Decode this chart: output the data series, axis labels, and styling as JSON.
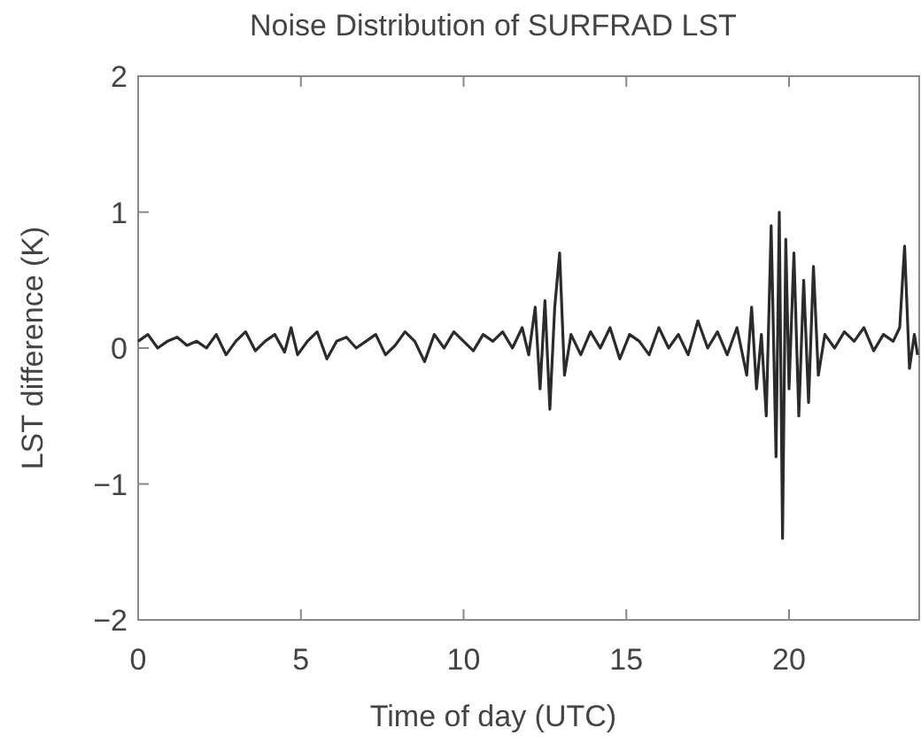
{
  "chart_data": {
    "type": "line",
    "title": "Noise Distribution of SURFRAD LST",
    "xlabel": "Time of day (UTC)",
    "ylabel": "LST difference (K)",
    "xlim": [
      0,
      24
    ],
    "ylim": [
      -2,
      2
    ],
    "xticks": [
      0,
      5,
      10,
      15,
      20
    ],
    "yticks": [
      {
        "value": -2,
        "label": "−2"
      },
      {
        "value": -1,
        "label": "−1"
      },
      0,
      1,
      2
    ],
    "grid": false,
    "line_style": "solid",
    "series": [
      {
        "color": "#2b2b2b",
        "x": [
          0,
          0.3,
          0.6,
          0.9,
          1.2,
          1.5,
          1.8,
          2.1,
          2.4,
          2.7,
          3.0,
          3.3,
          3.6,
          3.9,
          4.2,
          4.5,
          4.7,
          4.9,
          5.2,
          5.5,
          5.8,
          6.1,
          6.4,
          6.7,
          7.0,
          7.3,
          7.6,
          7.9,
          8.2,
          8.5,
          8.8,
          9.1,
          9.4,
          9.7,
          10.0,
          10.3,
          10.6,
          10.9,
          11.2,
          11.5,
          11.8,
          12.0,
          12.2,
          12.35,
          12.5,
          12.65,
          12.8,
          12.95,
          13.1,
          13.3,
          13.6,
          13.9,
          14.2,
          14.5,
          14.8,
          15.1,
          15.4,
          15.7,
          16.0,
          16.3,
          16.6,
          16.9,
          17.2,
          17.5,
          17.8,
          18.1,
          18.4,
          18.7,
          18.85,
          19.0,
          19.15,
          19.3,
          19.45,
          19.6,
          19.7,
          19.8,
          19.9,
          20.0,
          20.15,
          20.3,
          20.45,
          20.6,
          20.75,
          20.9,
          21.1,
          21.4,
          21.7,
          22.0,
          22.3,
          22.6,
          22.9,
          23.2,
          23.4,
          23.55,
          23.7,
          23.85,
          23.95
        ],
        "values": [
          0.05,
          0.1,
          0.0,
          0.05,
          0.08,
          0.02,
          0.05,
          0.0,
          0.1,
          -0.05,
          0.05,
          0.12,
          -0.02,
          0.05,
          0.1,
          -0.03,
          0.15,
          -0.05,
          0.05,
          0.12,
          -0.08,
          0.05,
          0.08,
          0.0,
          0.05,
          0.1,
          -0.05,
          0.02,
          0.12,
          0.05,
          -0.1,
          0.1,
          0.0,
          0.12,
          0.05,
          -0.02,
          0.1,
          0.05,
          0.12,
          0.0,
          0.15,
          -0.05,
          0.3,
          -0.3,
          0.35,
          -0.45,
          0.3,
          0.7,
          -0.2,
          0.1,
          -0.05,
          0.12,
          0.0,
          0.15,
          -0.08,
          0.1,
          0.05,
          -0.05,
          0.15,
          0.0,
          0.1,
          -0.05,
          0.2,
          0.0,
          0.12,
          -0.05,
          0.15,
          -0.2,
          0.3,
          -0.3,
          0.1,
          -0.5,
          0.9,
          -0.8,
          1.0,
          -1.4,
          0.8,
          -0.3,
          0.7,
          -0.5,
          0.5,
          -0.4,
          0.6,
          -0.2,
          0.1,
          0.0,
          0.12,
          0.05,
          0.15,
          -0.02,
          0.1,
          0.05,
          0.15,
          0.75,
          -0.15,
          0.1,
          -0.05
        ]
      }
    ]
  }
}
